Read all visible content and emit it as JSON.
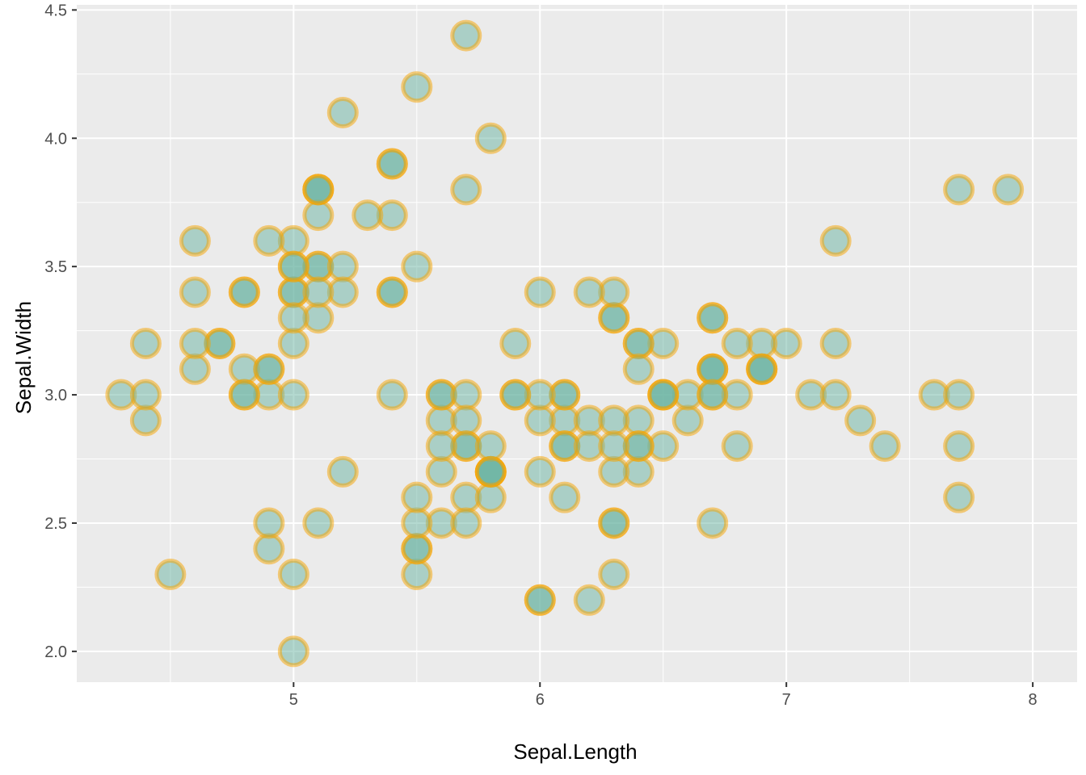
{
  "chart_data": {
    "type": "scatter",
    "title": "",
    "xlabel": "Sepal.Length",
    "ylabel": "Sepal.Width",
    "xlim": [
      4.12,
      8.18
    ],
    "ylim": [
      1.88,
      4.52
    ],
    "x_ticks": [
      5,
      6,
      7,
      8
    ],
    "y_ticks": [
      2.0,
      2.5,
      3.0,
      3.5,
      4.0,
      4.5
    ],
    "x_tick_labels": [
      "5",
      "6",
      "7",
      "8"
    ],
    "y_tick_labels": [
      "2.0",
      "2.5",
      "3.0",
      "3.5",
      "4.0",
      "4.5"
    ],
    "grid": true,
    "legend": "none",
    "panel_color": "#ebebeb",
    "point_fill": "#69b3a2",
    "point_stroke": "#f5a300",
    "points": [
      {
        "x": 5.1,
        "y": 3.5
      },
      {
        "x": 4.9,
        "y": 3.0
      },
      {
        "x": 4.7,
        "y": 3.2
      },
      {
        "x": 4.6,
        "y": 3.1
      },
      {
        "x": 5.0,
        "y": 3.6
      },
      {
        "x": 5.4,
        "y": 3.9
      },
      {
        "x": 4.6,
        "y": 3.4
      },
      {
        "x": 5.0,
        "y": 3.4
      },
      {
        "x": 4.4,
        "y": 2.9
      },
      {
        "x": 4.9,
        "y": 3.1
      },
      {
        "x": 5.4,
        "y": 3.7
      },
      {
        "x": 4.8,
        "y": 3.4
      },
      {
        "x": 4.8,
        "y": 3.0
      },
      {
        "x": 4.3,
        "y": 3.0
      },
      {
        "x": 5.8,
        "y": 4.0
      },
      {
        "x": 5.7,
        "y": 4.4
      },
      {
        "x": 5.4,
        "y": 3.9
      },
      {
        "x": 5.1,
        "y": 3.5
      },
      {
        "x": 5.7,
        "y": 3.8
      },
      {
        "x": 5.1,
        "y": 3.8
      },
      {
        "x": 5.4,
        "y": 3.4
      },
      {
        "x": 5.1,
        "y": 3.7
      },
      {
        "x": 4.6,
        "y": 3.6
      },
      {
        "x": 5.1,
        "y": 3.3
      },
      {
        "x": 4.8,
        "y": 3.4
      },
      {
        "x": 5.0,
        "y": 3.0
      },
      {
        "x": 5.0,
        "y": 3.4
      },
      {
        "x": 5.2,
        "y": 3.5
      },
      {
        "x": 5.2,
        "y": 3.4
      },
      {
        "x": 4.7,
        "y": 3.2
      },
      {
        "x": 4.8,
        "y": 3.1
      },
      {
        "x": 5.4,
        "y": 3.4
      },
      {
        "x": 5.2,
        "y": 4.1
      },
      {
        "x": 5.5,
        "y": 4.2
      },
      {
        "x": 4.9,
        "y": 3.1
      },
      {
        "x": 5.0,
        "y": 3.2
      },
      {
        "x": 5.5,
        "y": 3.5
      },
      {
        "x": 4.9,
        "y": 3.6
      },
      {
        "x": 4.4,
        "y": 3.0
      },
      {
        "x": 5.1,
        "y": 3.4
      },
      {
        "x": 5.0,
        "y": 3.5
      },
      {
        "x": 4.5,
        "y": 2.3
      },
      {
        "x": 4.4,
        "y": 3.2
      },
      {
        "x": 5.0,
        "y": 3.5
      },
      {
        "x": 5.1,
        "y": 3.8
      },
      {
        "x": 4.8,
        "y": 3.0
      },
      {
        "x": 5.1,
        "y": 3.8
      },
      {
        "x": 4.6,
        "y": 3.2
      },
      {
        "x": 5.3,
        "y": 3.7
      },
      {
        "x": 5.0,
        "y": 3.3
      },
      {
        "x": 7.0,
        "y": 3.2
      },
      {
        "x": 6.4,
        "y": 3.2
      },
      {
        "x": 6.9,
        "y": 3.1
      },
      {
        "x": 5.5,
        "y": 2.3
      },
      {
        "x": 6.5,
        "y": 2.8
      },
      {
        "x": 5.7,
        "y": 2.8
      },
      {
        "x": 6.3,
        "y": 3.3
      },
      {
        "x": 4.9,
        "y": 2.4
      },
      {
        "x": 6.6,
        "y": 2.9
      },
      {
        "x": 5.2,
        "y": 2.7
      },
      {
        "x": 5.0,
        "y": 2.0
      },
      {
        "x": 5.9,
        "y": 3.0
      },
      {
        "x": 6.0,
        "y": 2.2
      },
      {
        "x": 6.1,
        "y": 2.9
      },
      {
        "x": 5.6,
        "y": 2.9
      },
      {
        "x": 6.7,
        "y": 3.1
      },
      {
        "x": 5.6,
        "y": 3.0
      },
      {
        "x": 5.8,
        "y": 2.7
      },
      {
        "x": 6.2,
        "y": 2.2
      },
      {
        "x": 5.6,
        "y": 2.5
      },
      {
        "x": 5.9,
        "y": 3.2
      },
      {
        "x": 6.1,
        "y": 2.8
      },
      {
        "x": 6.3,
        "y": 2.5
      },
      {
        "x": 6.1,
        "y": 2.8
      },
      {
        "x": 6.4,
        "y": 2.9
      },
      {
        "x": 6.6,
        "y": 3.0
      },
      {
        "x": 6.8,
        "y": 2.8
      },
      {
        "x": 6.7,
        "y": 3.0
      },
      {
        "x": 6.0,
        "y": 2.9
      },
      {
        "x": 5.7,
        "y": 2.6
      },
      {
        "x": 5.5,
        "y": 2.4
      },
      {
        "x": 5.5,
        "y": 2.4
      },
      {
        "x": 5.8,
        "y": 2.7
      },
      {
        "x": 6.0,
        "y": 2.7
      },
      {
        "x": 5.4,
        "y": 3.0
      },
      {
        "x": 6.0,
        "y": 3.4
      },
      {
        "x": 6.7,
        "y": 3.1
      },
      {
        "x": 6.3,
        "y": 2.3
      },
      {
        "x": 5.6,
        "y": 3.0
      },
      {
        "x": 5.5,
        "y": 2.5
      },
      {
        "x": 5.5,
        "y": 2.6
      },
      {
        "x": 6.1,
        "y": 3.0
      },
      {
        "x": 5.8,
        "y": 2.6
      },
      {
        "x": 5.0,
        "y": 2.3
      },
      {
        "x": 5.6,
        "y": 2.7
      },
      {
        "x": 5.7,
        "y": 3.0
      },
      {
        "x": 5.7,
        "y": 2.9
      },
      {
        "x": 6.2,
        "y": 2.9
      },
      {
        "x": 5.1,
        "y": 2.5
      },
      {
        "x": 5.7,
        "y": 2.8
      },
      {
        "x": 6.3,
        "y": 3.3
      },
      {
        "x": 5.8,
        "y": 2.7
      },
      {
        "x": 7.1,
        "y": 3.0
      },
      {
        "x": 6.3,
        "y": 2.9
      },
      {
        "x": 6.5,
        "y": 3.0
      },
      {
        "x": 7.6,
        "y": 3.0
      },
      {
        "x": 4.9,
        "y": 2.5
      },
      {
        "x": 7.3,
        "y": 2.9
      },
      {
        "x": 6.7,
        "y": 2.5
      },
      {
        "x": 7.2,
        "y": 3.6
      },
      {
        "x": 6.5,
        "y": 3.2
      },
      {
        "x": 6.4,
        "y": 2.7
      },
      {
        "x": 6.8,
        "y": 3.0
      },
      {
        "x": 5.7,
        "y": 2.5
      },
      {
        "x": 5.8,
        "y": 2.8
      },
      {
        "x": 6.4,
        "y": 3.2
      },
      {
        "x": 6.5,
        "y": 3.0
      },
      {
        "x": 7.7,
        "y": 3.8
      },
      {
        "x": 7.7,
        "y": 2.6
      },
      {
        "x": 6.0,
        "y": 2.2
      },
      {
        "x": 6.9,
        "y": 3.2
      },
      {
        "x": 5.6,
        "y": 2.8
      },
      {
        "x": 7.7,
        "y": 2.8
      },
      {
        "x": 6.3,
        "y": 2.7
      },
      {
        "x": 6.7,
        "y": 3.3
      },
      {
        "x": 7.2,
        "y": 3.2
      },
      {
        "x": 6.2,
        "y": 2.8
      },
      {
        "x": 6.1,
        "y": 3.0
      },
      {
        "x": 6.4,
        "y": 2.8
      },
      {
        "x": 7.2,
        "y": 3.0
      },
      {
        "x": 7.4,
        "y": 2.8
      },
      {
        "x": 7.9,
        "y": 3.8
      },
      {
        "x": 6.4,
        "y": 2.8
      },
      {
        "x": 6.3,
        "y": 2.8
      },
      {
        "x": 6.1,
        "y": 2.6
      },
      {
        "x": 7.7,
        "y": 3.0
      },
      {
        "x": 6.3,
        "y": 3.4
      },
      {
        "x": 6.4,
        "y": 3.1
      },
      {
        "x": 6.0,
        "y": 3.0
      },
      {
        "x": 6.9,
        "y": 3.1
      },
      {
        "x": 6.7,
        "y": 3.1
      },
      {
        "x": 6.9,
        "y": 3.1
      },
      {
        "x": 5.8,
        "y": 2.7
      },
      {
        "x": 6.8,
        "y": 3.2
      },
      {
        "x": 6.7,
        "y": 3.3
      },
      {
        "x": 6.7,
        "y": 3.0
      },
      {
        "x": 6.3,
        "y": 2.5
      },
      {
        "x": 6.5,
        "y": 3.0
      },
      {
        "x": 6.2,
        "y": 3.4
      },
      {
        "x": 5.9,
        "y": 3.0
      }
    ]
  }
}
